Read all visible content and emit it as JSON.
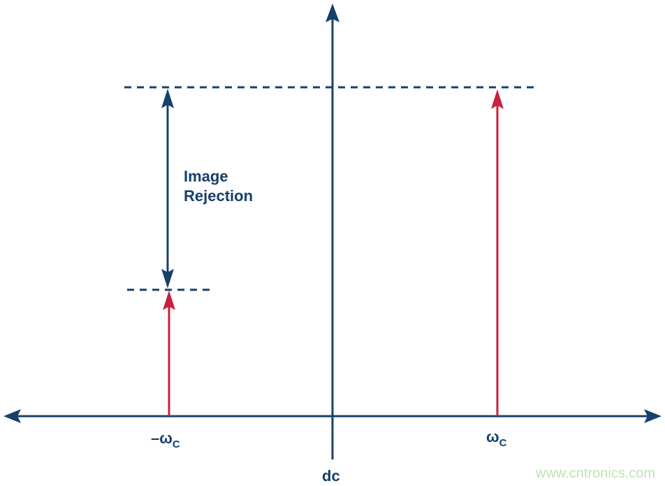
{
  "colors": {
    "axis": "#17406b",
    "signal": "#c8203f",
    "watermark": "#bfe3b4"
  },
  "labels": {
    "image_rejection_line1": "Image",
    "image_rejection_line2": "Rejection",
    "neg_wc_main": "–ω",
    "neg_wc_sub": "C",
    "wc_main": "ω",
    "wc_sub": "C",
    "dc": "dc"
  },
  "watermark": "www.cntronics.com"
}
